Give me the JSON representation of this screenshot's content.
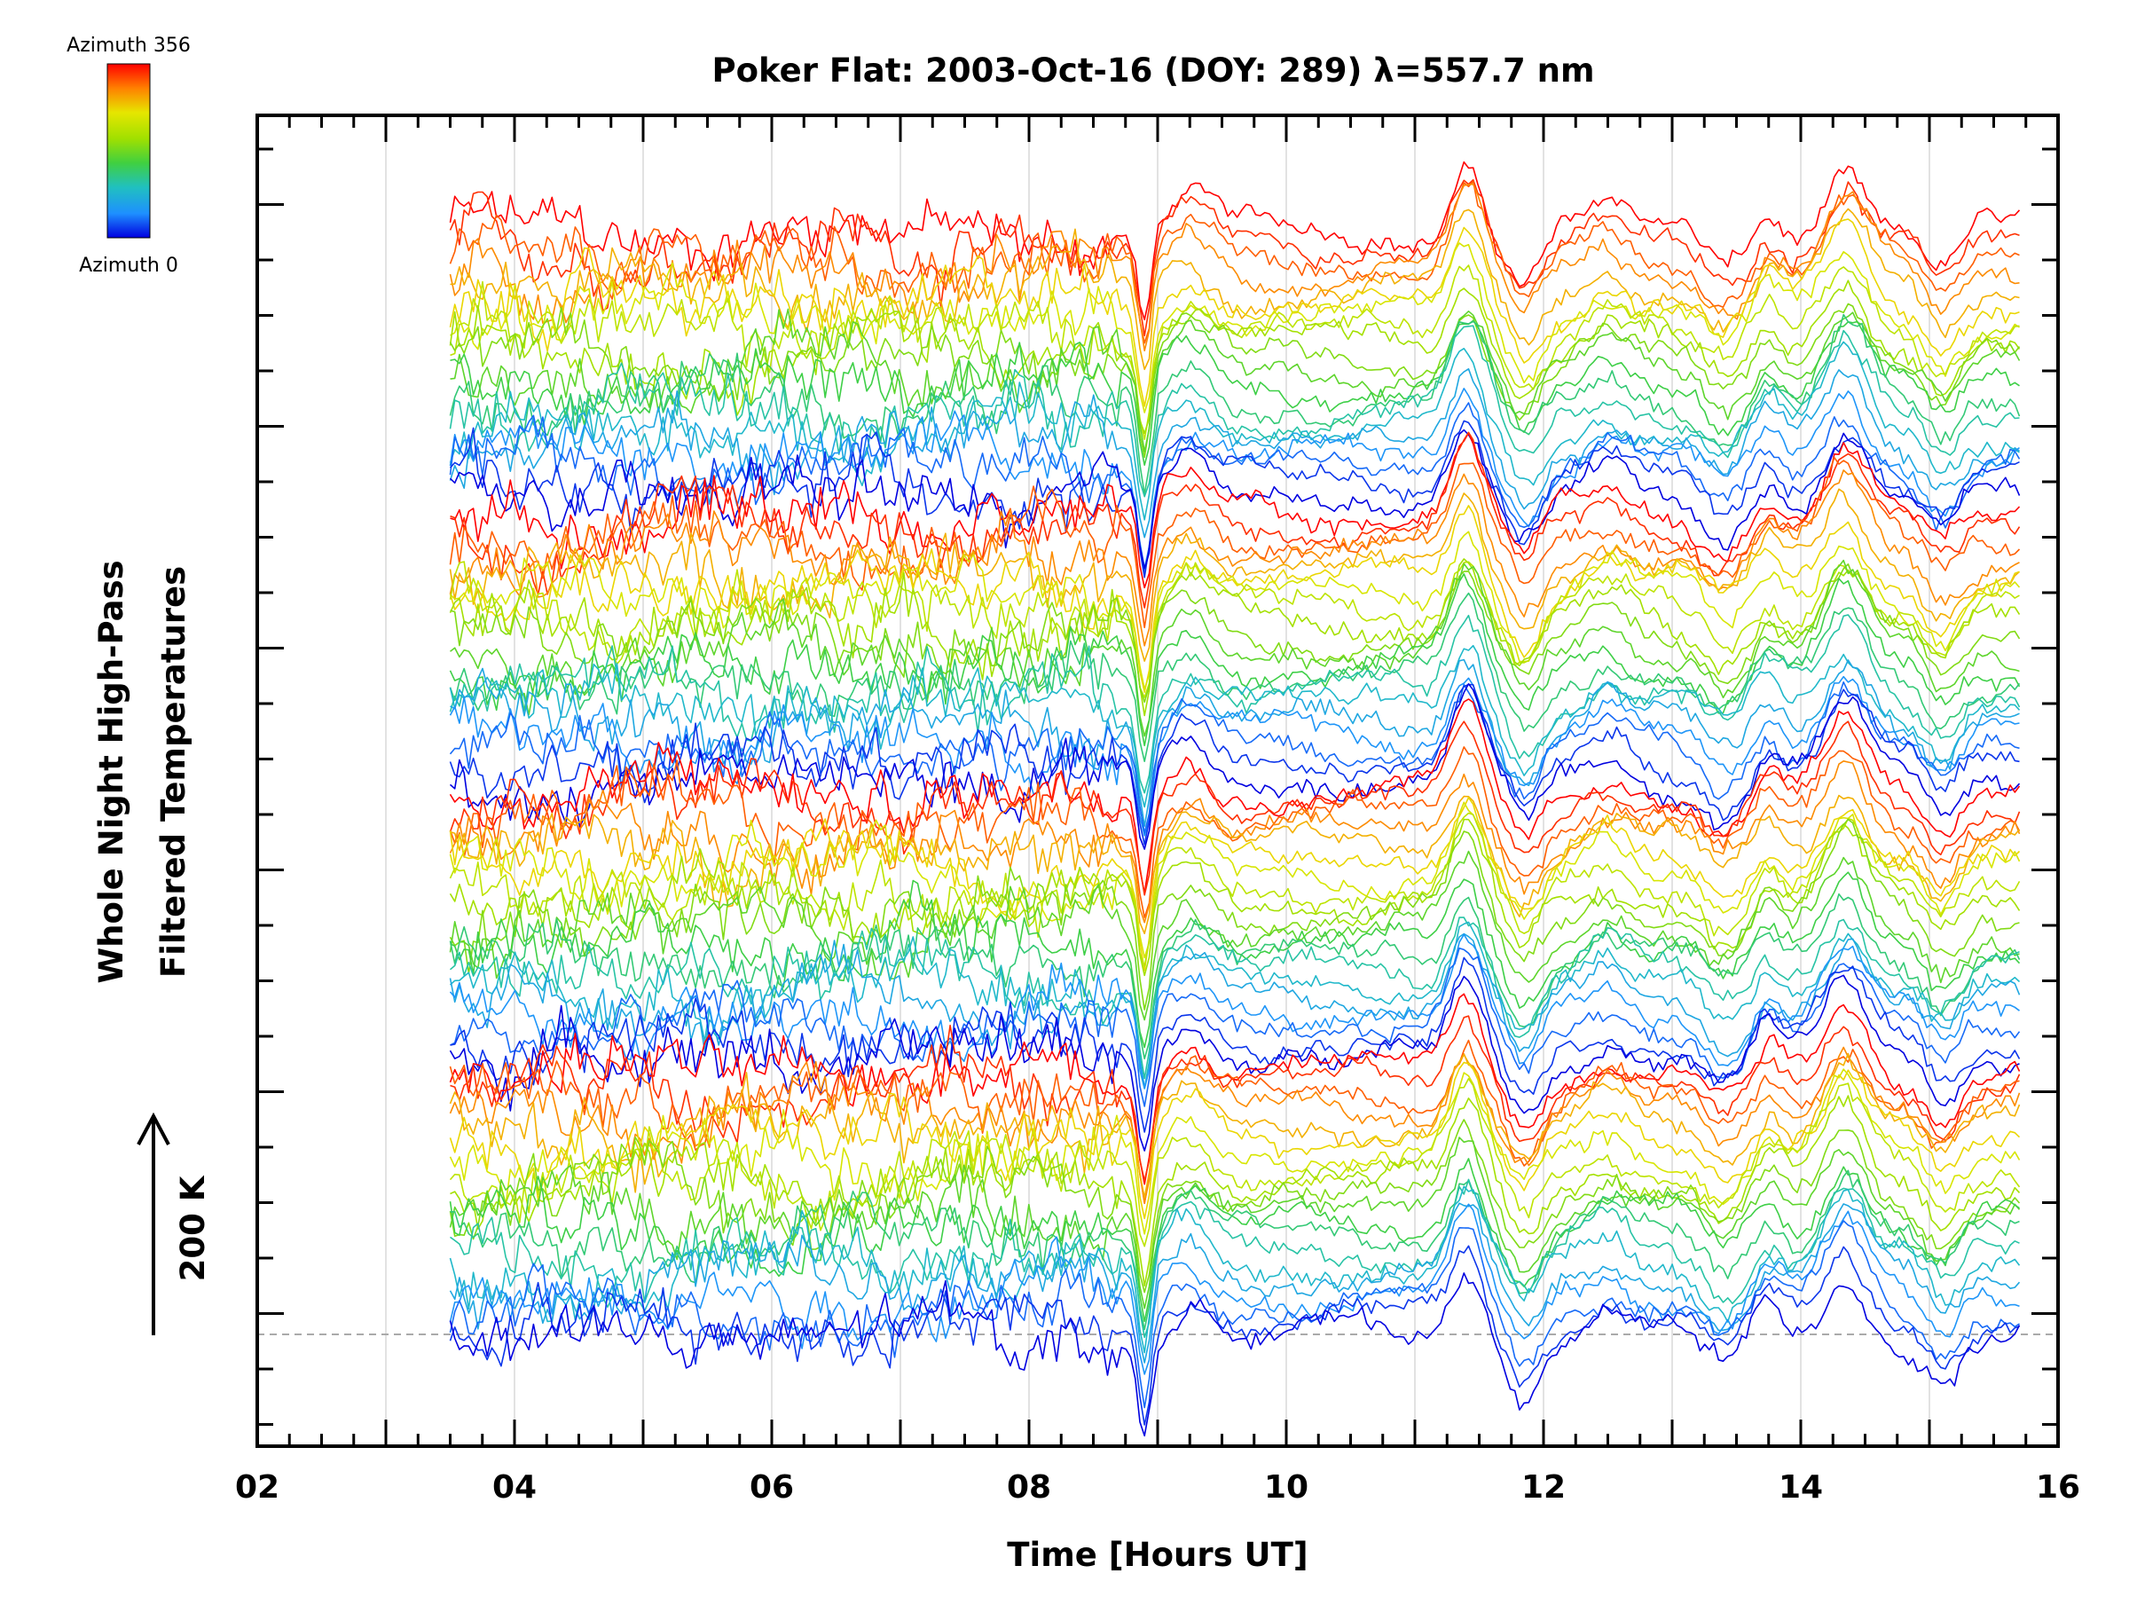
{
  "chart_data": {
    "type": "line",
    "title": "Poker Flat: 2003-Oct-16 (DOY: 289) λ=557.7 nm",
    "xlabel": "Time [Hours UT]",
    "ylabel_line1": "Whole Night High-Pass",
    "ylabel_line2": "Filtered Temperatures",
    "scale_label": "200 K",
    "xlim": [
      2,
      16
    ],
    "x_ticks": [
      "02",
      "04",
      "06",
      "08",
      "10",
      "12",
      "14",
      "16"
    ],
    "x_start": 3.5,
    "x_end": 15.7,
    "grid": "vertical lines each hour",
    "colorbar": {
      "top_label": "Azimuth 356",
      "bottom_label": "Azimuth 0",
      "colors": [
        "#ff0000",
        "#ff8000",
        "#e6e600",
        "#a0e000",
        "#40d040",
        "#20c0c0",
        "#1e90ff",
        "#0000e0"
      ]
    },
    "n_traces": 80,
    "common_features": [
      {
        "time": 8.9,
        "amplitude": -1.7,
        "width": 0.07,
        "note": "sharp dip"
      },
      {
        "time": 9.25,
        "amplitude": 0.6,
        "width": 0.22
      },
      {
        "time": 11.4,
        "amplitude": 1.3,
        "width": 0.17
      },
      {
        "time": 11.85,
        "amplitude": -0.9,
        "width": 0.18
      },
      {
        "time": 12.5,
        "amplitude": 0.4,
        "width": 0.2
      },
      {
        "time": 13.4,
        "amplitude": -0.6,
        "width": 0.2
      },
      {
        "time": 13.75,
        "amplitude": 0.4,
        "width": 0.12
      },
      {
        "time": 14.35,
        "amplitude": 1.2,
        "width": 0.22
      },
      {
        "time": 15.1,
        "amplitude": -0.7,
        "width": 0.18
      }
    ],
    "colors": {
      "axis": "#000000",
      "grid": "#d8d8d8",
      "baseline": "#aaaaaa"
    }
  }
}
